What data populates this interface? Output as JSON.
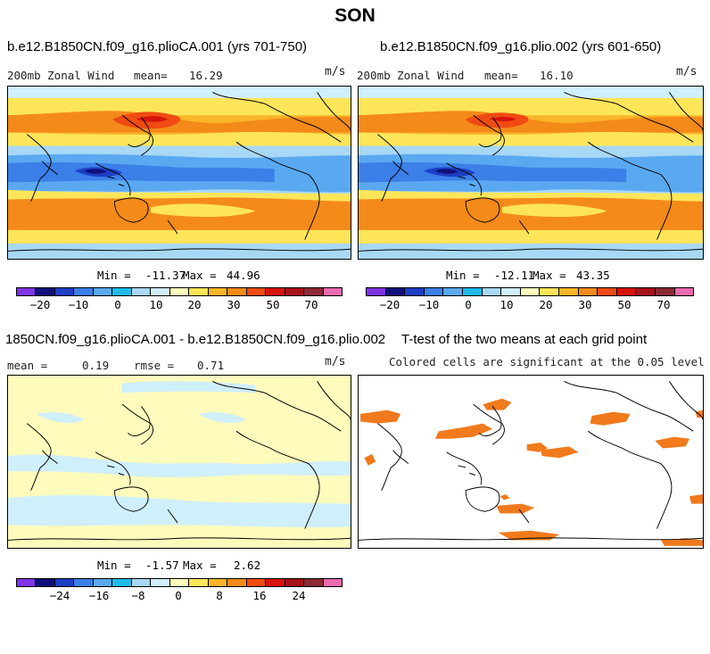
{
  "title": "SON",
  "panels": [
    {
      "title": "b.e12.B1850CN.f09_g16.plioCA.001 (yrs 701-750)",
      "variable_label": "200mb Zonal Wind",
      "mean_label": "mean=",
      "mean_value": "16.29",
      "units": "m/s",
      "min_label": "Min =",
      "min_value": "-11.37",
      "max_label": "Max =",
      "max_value": "44.96",
      "colorbar_ticks": [
        "−20",
        "−10",
        "0",
        "10",
        "20",
        "30",
        "50",
        "70"
      ]
    },
    {
      "title": "b.e12.B1850CN.f09_g16.plio.002 (yrs 601-650)",
      "variable_label": "200mb Zonal Wind",
      "mean_label": "mean=",
      "mean_value": "16.10",
      "units": "m/s",
      "min_label": "Min =",
      "min_value": "-12.11",
      "max_label": "Max =",
      "max_value": "43.35",
      "colorbar_ticks": [
        "−20",
        "−10",
        "0",
        "10",
        "20",
        "30",
        "50",
        "70"
      ]
    },
    {
      "title": "1850CN.f09_g16.plioCA.001 - b.e12.B1850CN.f09_g16.plio.002",
      "mean_label": "mean =",
      "mean_value": "0.19",
      "rmse_label": "rmse =",
      "rmse_value": "0.71",
      "units": "m/s",
      "min_label": "Min =",
      "min_value": "-1.57",
      "max_label": "Max =",
      "max_value": "2.62",
      "colorbar_ticks": [
        "−24",
        "−16",
        "−8",
        "0",
        "8",
        "16",
        "24"
      ]
    },
    {
      "title": "T-test of the two means at each grid point",
      "subtitle": "Colored cells are significant at the 0.05 level"
    }
  ],
  "colors": {
    "wind_scale": [
      "#7f33e6",
      "#110f7a",
      "#1d3fc4",
      "#3b7fe8",
      "#5aa9f0",
      "#1fbbeb",
      "#a8d8f5",
      "#cfeffb",
      "#fffbbd",
      "#fde55a",
      "#f9b529",
      "#f48a1a",
      "#ef4b12",
      "#d6120c",
      "#a6121a",
      "#8c2a36",
      "#ec6bb0"
    ],
    "diff_scale": [
      "#7f33e6",
      "#110f7a",
      "#1d3fc4",
      "#3b7fe8",
      "#5aa9f0",
      "#1fbbeb",
      "#a8d8f5",
      "#cfeffb",
      "#fffbbd",
      "#fde55a",
      "#f9b529",
      "#f48a1a",
      "#ef4b12",
      "#d6120c",
      "#a6121a",
      "#8c2a36",
      "#ec6bb0"
    ],
    "significance": "#f07a1c",
    "coastline": "#000000"
  }
}
